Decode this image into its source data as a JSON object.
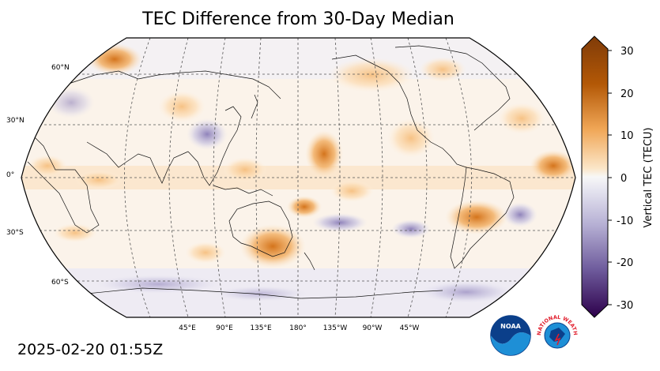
{
  "title": "TEC Difference from 30-Day Median",
  "timestamp": "2025-02-20 01:55Z",
  "map": {
    "projection": "Robinson, centered 180°",
    "lat_labels": [
      "60°N",
      "30°N",
      "0°",
      "30°S",
      "60°S"
    ],
    "lon_labels": [
      "45°E",
      "90°E",
      "135°E",
      "180°",
      "135°W",
      "90°W",
      "45°W"
    ],
    "anomaly_regions": [
      {
        "region": "Australia / Tasman Sea",
        "sign": "positive",
        "level": 20
      },
      {
        "region": "Central Pacific near equator",
        "sign": "positive",
        "level": 15
      },
      {
        "region": "South America (Argentina/Brazil)",
        "sign": "positive",
        "level": 20
      },
      {
        "region": "Alaska / North Pacific",
        "sign": "positive",
        "level": 10
      },
      {
        "region": "Equatorial Atlantic",
        "sign": "positive",
        "level": 10
      },
      {
        "region": "China / East Asia",
        "sign": "negative",
        "level": -10
      },
      {
        "region": "South Atlantic",
        "sign": "negative",
        "level": -10
      }
    ]
  },
  "colorbar": {
    "label": "Vertical TEC (TECU)",
    "min": -30,
    "max": 30,
    "ticks": [
      "30",
      "20",
      "10",
      "0",
      "-10",
      "-20",
      "-30"
    ],
    "colors": {
      "max": "#7f3b08",
      "high": "#d8781a",
      "mid_pos": "#fdd9a6",
      "zero": "#f7f7f7",
      "mid_neg": "#c9c6e0",
      "low": "#6c5a99",
      "min": "#2d004b"
    }
  },
  "logos": {
    "noaa_text": "NOAA",
    "nws_text": "NATIONAL WEATHER SERVICE"
  }
}
